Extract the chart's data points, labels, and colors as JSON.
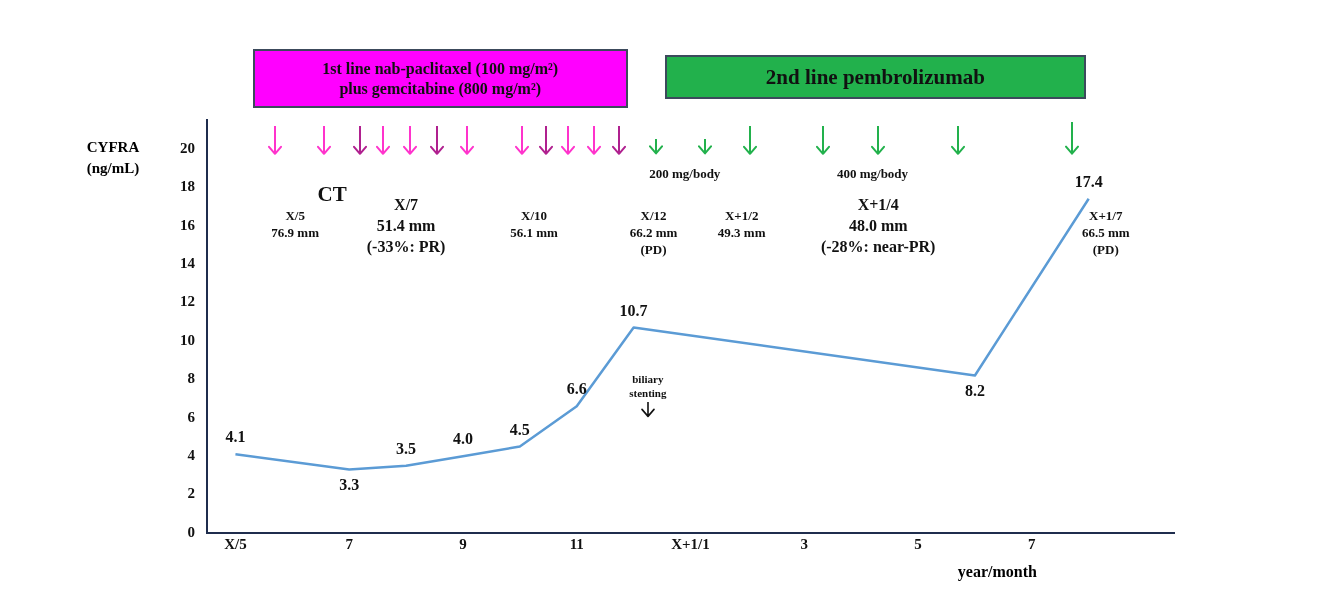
{
  "chart_data": {
    "type": "line",
    "ylabel": "CYFRA\n(ng/mL)",
    "xlabel": "year/month",
    "categories": [
      "X/5",
      null,
      "7",
      null,
      "9",
      null,
      "11",
      null,
      "X+1/1",
      null,
      "3",
      null,
      "5",
      null,
      "7",
      null,
      null
    ],
    "series": [
      {
        "color": "#5b9bd5",
        "values": [
          4.1,
          null,
          3.3,
          3.5,
          4.0,
          4.5,
          6.6,
          10.7,
          null,
          null,
          null,
          null,
          null,
          8.2,
          null,
          17.4,
          null
        ],
        "value_labels": [
          "4.1",
          null,
          "3.3",
          "3.5",
          "4.0",
          "4.5",
          "6.6",
          "10.7",
          null,
          null,
          null,
          null,
          null,
          "8.2",
          null,
          "17.4",
          null
        ]
      }
    ],
    "ylim": [
      0,
      21.5
    ],
    "yticks": [
      0,
      2,
      4,
      6,
      8,
      10,
      12,
      14,
      16,
      18,
      20
    ],
    "grid": false,
    "legend": false,
    "marker": "none",
    "line_style": "solid",
    "annotations": [
      "1st line nab-paclitaxel (100 mg/m²)\nplus gemcitabine (800 mg/m²)",
      "2nd line pembrolizumab",
      "200 mg/body",
      "400 mg/body",
      "CT",
      "X/5\n76.9 mm",
      "X/7\n51.4 mm\n(-33%: PR)",
      "X/10\n56.1 mm",
      "X/12\n66.2 mm\n(PD)",
      "X+1/2\n49.3 mm",
      "X+1/4\n48.0 mm\n(-28%: near-PR)",
      "X+1/7\n66.5 mm\n(PD)",
      "biliary\nstenting"
    ]
  }
}
